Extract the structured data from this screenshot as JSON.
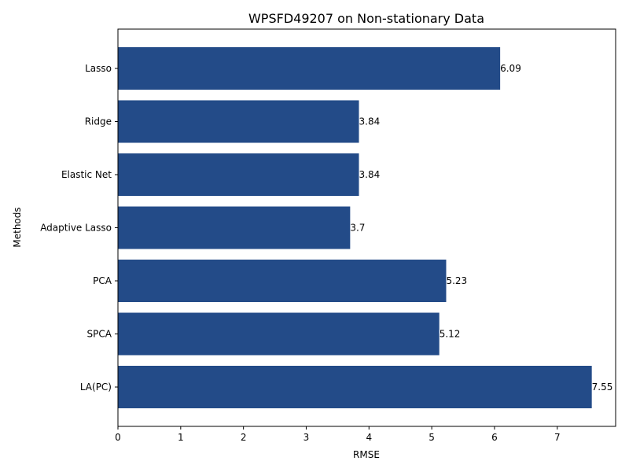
{
  "chart_data": {
    "type": "bar",
    "orientation": "horizontal",
    "title": "WPSFD49207 on Non-stationary Data",
    "xlabel": "RMSE",
    "ylabel": "Methods",
    "categories": [
      "Lasso",
      "Ridge",
      "Elastic Net",
      "Adaptive Lasso",
      "PCA",
      "SPCA",
      "LA(PC)"
    ],
    "values": [
      6.09,
      3.84,
      3.84,
      3.7,
      5.23,
      5.12,
      7.55
    ],
    "value_labels": [
      "6.09",
      "3.84",
      "3.84",
      "3.7",
      "5.23",
      "5.12",
      "7.55"
    ],
    "xlim": [
      0,
      7.93
    ],
    "xticks": [
      0,
      1,
      2,
      3,
      4,
      5,
      6,
      7
    ],
    "bar_color": "#234b88",
    "grid": false,
    "legend": "none"
  }
}
